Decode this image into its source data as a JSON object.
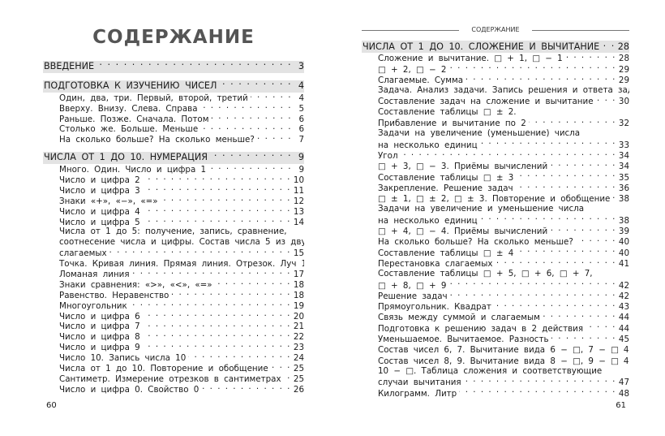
{
  "left": {
    "title": "СОДЕРЖАНИЕ",
    "folio": "60",
    "rows": [
      {
        "type": "section",
        "text": "ВВЕДЕНИЕ",
        "page": "3"
      },
      {
        "type": "gap"
      },
      {
        "type": "section",
        "text": "ПОДГОТОВКА К ИЗУЧЕНИЮ ЧИСЕЛ",
        "page": "4"
      },
      {
        "type": "item",
        "text": "Один, два, три. Первый, второй, третий",
        "page": "4"
      },
      {
        "type": "item",
        "text": "Вверху. Внизу. Слева. Справа",
        "page": "5"
      },
      {
        "type": "item",
        "text": "Раньше. Позже. Сначала. Потом",
        "page": "6"
      },
      {
        "type": "item",
        "text": "Столько же. Больше. Меньше",
        "page": "6"
      },
      {
        "type": "item",
        "text": "На сколько больше? На сколько меньше?",
        "page": "7"
      },
      {
        "type": "gap"
      },
      {
        "type": "section",
        "text": "ЧИСЛА ОТ 1 ДО 10. НУМЕРАЦИЯ",
        "page": "9"
      },
      {
        "type": "item",
        "text": "Много. Один. Число и цифра 1",
        "page": "9"
      },
      {
        "type": "item",
        "text": "Число и цифра 2",
        "page": "10"
      },
      {
        "type": "item",
        "text": "Число и цифра 3",
        "page": "11"
      },
      {
        "type": "item",
        "text": "Знаки «+», «−», «=»",
        "page": "12"
      },
      {
        "type": "item",
        "text": "Число и цифра 4",
        "page": "13"
      },
      {
        "type": "item",
        "text": "Число и цифра 5",
        "page": "14"
      },
      {
        "type": "cont",
        "text": "Числа от 1 до 5: получение, запись, сравнение,"
      },
      {
        "type": "cont",
        "text": "соотнесение числа и цифры. Состав числа 5 из двух"
      },
      {
        "type": "item",
        "text": "слагаемых",
        "page": "15"
      },
      {
        "type": "item",
        "text": "Точка. Кривая линия. Прямая линия. Отрезок. Луч",
        "page": "15"
      },
      {
        "type": "item",
        "text": "Ломаная линия",
        "page": "17"
      },
      {
        "type": "item",
        "text": "Знаки сравнения: «>», «<», «=»",
        "page": "18"
      },
      {
        "type": "item",
        "text": "Равенство. Неравенство",
        "page": "18"
      },
      {
        "type": "item",
        "text": "Многоугольник",
        "page": "19"
      },
      {
        "type": "item",
        "text": "Число и цифра 6",
        "page": "20"
      },
      {
        "type": "item",
        "text": "Число и цифра 7",
        "page": "21"
      },
      {
        "type": "item",
        "text": "Число и цифра 8",
        "page": "22"
      },
      {
        "type": "item",
        "text": "Число и цифра 9",
        "page": "23"
      },
      {
        "type": "item",
        "text": "Число 10. Запись числа 10",
        "page": "24"
      },
      {
        "type": "item",
        "text": "Числа от 1 до 10. Повторение и обобщение",
        "page": "25"
      },
      {
        "type": "item",
        "text": "Сантиметр. Измерение отрезков в сантиметрах",
        "page": "25"
      },
      {
        "type": "item",
        "text": "Число и цифра 0. Свойство 0",
        "page": "26"
      }
    ]
  },
  "right": {
    "running_head": "СОДЕРЖАНИЕ",
    "folio": "61",
    "rows": [
      {
        "type": "section",
        "text": "ЧИСЛА ОТ 1 ДО 10. СЛОЖЕНИЕ И ВЫЧИТАНИЕ",
        "page": "28"
      },
      {
        "type": "item",
        "text": "Сложение и вычитание. □ + 1, □ − 1",
        "page": "28"
      },
      {
        "type": "item",
        "text": "□ + 2, □ − 2",
        "page": "29"
      },
      {
        "type": "item",
        "text": "Слагаемые. Сумма",
        "page": "29"
      },
      {
        "type": "cont",
        "text": "Задача. Анализ задачи. Запись решения и ответа задачи."
      },
      {
        "type": "item",
        "text": "Составление задач на сложение и вычитание",
        "page": "30"
      },
      {
        "type": "cont",
        "text": "Составление таблицы □ ± 2."
      },
      {
        "type": "item",
        "text": "Прибавление и вычитание по 2",
        "page": "32"
      },
      {
        "type": "cont",
        "text": "Задачи на увеличение (уменьшение) числа"
      },
      {
        "type": "item",
        "text": "на несколько единиц",
        "page": "33"
      },
      {
        "type": "item",
        "text": "Угол",
        "page": "34"
      },
      {
        "type": "item",
        "text": "□ + 3, □ − 3. Приёмы вычислений",
        "page": "34"
      },
      {
        "type": "item",
        "text": "Составление таблицы □ ± 3",
        "page": "35"
      },
      {
        "type": "item",
        "text": "Закрепление. Решение задач",
        "page": "36"
      },
      {
        "type": "item",
        "text": "□ ± 1, □ ± 2, □ ± 3. Повторение и обобщение",
        "page": "38"
      },
      {
        "type": "cont",
        "text": "Задачи на увеличение и уменьшение числа"
      },
      {
        "type": "item",
        "text": "на несколько единиц",
        "page": "38"
      },
      {
        "type": "item",
        "text": "□ + 4, □ − 4. Приёмы вычислений",
        "page": "39"
      },
      {
        "type": "item",
        "text": "На сколько больше? На сколько меньше?",
        "page": "40"
      },
      {
        "type": "item",
        "text": "Составление таблицы □ ± 4",
        "page": "40"
      },
      {
        "type": "item",
        "text": "Перестановка слагаемых",
        "page": "41"
      },
      {
        "type": "cont",
        "text": "Составление таблицы □ + 5, □ + 6, □ + 7,"
      },
      {
        "type": "item",
        "text": "□ + 8, □ + 9",
        "page": "42"
      },
      {
        "type": "item",
        "text": "Решение задач",
        "page": "42"
      },
      {
        "type": "item",
        "text": "Прямоугольник. Квадрат",
        "page": "43"
      },
      {
        "type": "item",
        "text": "Связь между суммой и слагаемым",
        "page": "44"
      },
      {
        "type": "item",
        "text": "Подготовка к решению задач в 2 действия",
        "page": "44"
      },
      {
        "type": "item",
        "text": "Уменьшаемое. Вычитаемое. Разность",
        "page": "45"
      },
      {
        "type": "item",
        "text": "Состав чисел 6, 7. Вычитание вида 6 − □, 7 − □",
        "page": "46"
      },
      {
        "type": "item",
        "text": "Состав чисел 8, 9. Вычитание вида 8 − □, 9 − □",
        "page": "46"
      },
      {
        "type": "cont",
        "text": "10 − □. Таблица сложения и соответствующие"
      },
      {
        "type": "item",
        "text": "случаи вычитания",
        "page": "47"
      },
      {
        "type": "item",
        "text": "Килограмм. Литр",
        "page": "48"
      }
    ]
  }
}
